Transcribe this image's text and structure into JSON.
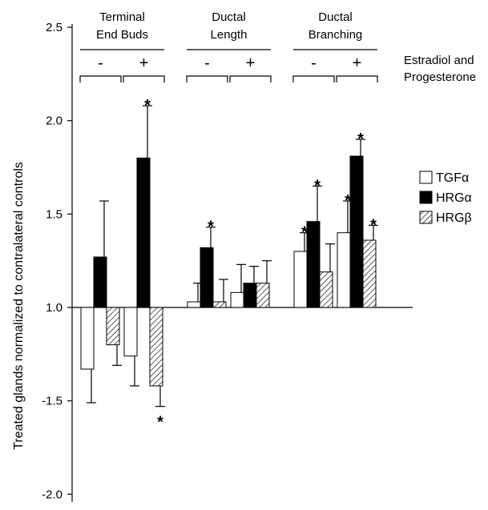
{
  "chart_data": {
    "type": "bar",
    "ylabel": "Treated glands normalized to contralateral controls",
    "yticks": [
      "2.5",
      "2.0",
      "1.5",
      "1.0",
      "-1.5",
      "-2.0"
    ],
    "treatment_label": "Estradiol and Progesterone",
    "groups": [
      {
        "label": "Terminal End Buds",
        "conditions": [
          {
            "sign": "-",
            "bars": [
              {
                "series": "TGFα",
                "value": -1.33,
                "error": 0.18,
                "star": false
              },
              {
                "series": "HRGα",
                "value": 1.27,
                "error": 0.3,
                "star": false
              },
              {
                "series": "HRGβ",
                "value": -1.2,
                "error": 0.11,
                "star": false
              }
            ]
          },
          {
            "sign": "+",
            "bars": [
              {
                "series": "TGFα",
                "value": -1.26,
                "error": 0.16,
                "star": false
              },
              {
                "series": "HRGα",
                "value": 1.8,
                "error": 0.28,
                "star": true
              },
              {
                "series": "HRGβ",
                "value": -1.42,
                "error": 0.11,
                "star": true
              }
            ]
          }
        ]
      },
      {
        "label": "Ductal Length",
        "conditions": [
          {
            "sign": "-",
            "bars": [
              {
                "series": "TGFα",
                "value": 1.03,
                "error": 0.1,
                "star": false
              },
              {
                "series": "HRGα",
                "value": 1.32,
                "error": 0.11,
                "star": true
              },
              {
                "series": "HRGβ",
                "value": 1.03,
                "error": 0.12,
                "star": false
              }
            ]
          },
          {
            "sign": "+",
            "bars": [
              {
                "series": "TGFα",
                "value": 1.08,
                "error": 0.15,
                "star": false
              },
              {
                "series": "HRGα",
                "value": 1.13,
                "error": 0.09,
                "star": false
              },
              {
                "series": "HRGβ",
                "value": 1.13,
                "error": 0.12,
                "star": false
              }
            ]
          }
        ]
      },
      {
        "label": "Ductal Branching",
        "conditions": [
          {
            "sign": "-",
            "bars": [
              {
                "series": "TGFα",
                "value": 1.3,
                "error": 0.1,
                "star": true
              },
              {
                "series": "HRGα",
                "value": 1.46,
                "error": 0.19,
                "star": true
              },
              {
                "series": "HRGβ",
                "value": 1.19,
                "error": 0.15,
                "star": false
              }
            ]
          },
          {
            "sign": "+",
            "bars": [
              {
                "series": "TGFα",
                "value": 1.4,
                "error": 0.17,
                "star": true
              },
              {
                "series": "HRGα",
                "value": 1.81,
                "error": 0.09,
                "star": true
              },
              {
                "series": "HRGβ",
                "value": 1.36,
                "error": 0.08,
                "star": true
              }
            ]
          }
        ]
      }
    ],
    "legend": [
      {
        "name": "TGFα",
        "fill": "#ffffff"
      },
      {
        "name": "HRGα",
        "fill": "#000000"
      },
      {
        "name": "HRGβ",
        "fill": "hatch"
      }
    ],
    "star_symbol": "*"
  }
}
